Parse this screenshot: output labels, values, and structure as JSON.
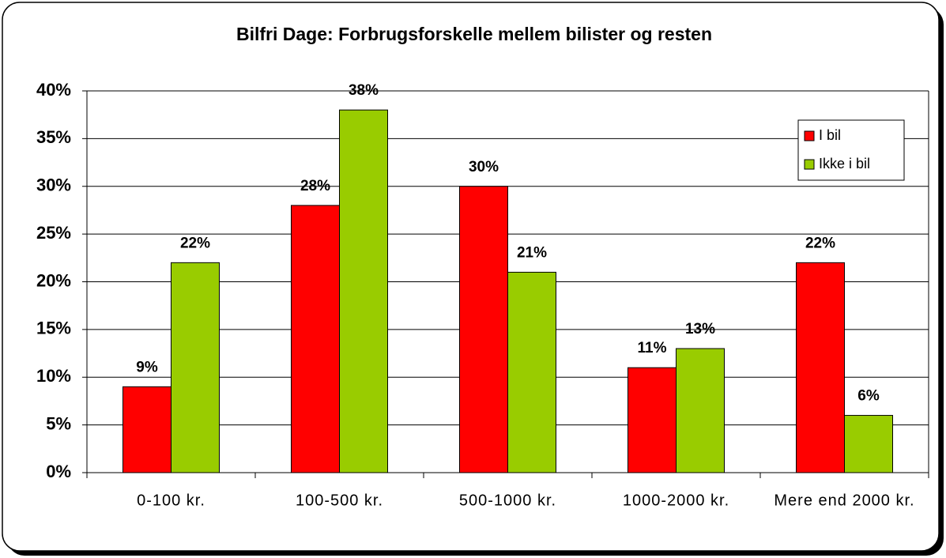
{
  "chart_data": {
    "type": "bar",
    "title": "Bilfri Dage: Forbrugsforskelle mellem bilister og resten",
    "categories": [
      "0-100 kr.",
      "100-500 kr.",
      "500-1000 kr.",
      "1000-2000 kr.",
      "Mere end 2000 kr."
    ],
    "series": [
      {
        "name": "I bil",
        "color": "#ff0000",
        "values": [
          9,
          28,
          30,
          11,
          22
        ],
        "value_labels": [
          "9%",
          "28%",
          "30%",
          "11%",
          "22%"
        ]
      },
      {
        "name": "Ikke i bil",
        "color": "#99cc00",
        "values": [
          22,
          38,
          21,
          13,
          6
        ],
        "value_labels": [
          "22%",
          "38%",
          "21%",
          "13%",
          "6%"
        ]
      }
    ],
    "ylim": [
      0,
      40
    ],
    "yticks": [
      {
        "value": 0,
        "label": "0%"
      },
      {
        "value": 5,
        "label": "5%"
      },
      {
        "value": 10,
        "label": "10%"
      },
      {
        "value": 15,
        "label": "15%"
      },
      {
        "value": 20,
        "label": "20%"
      },
      {
        "value": 25,
        "label": "25%"
      },
      {
        "value": 30,
        "label": "30%"
      },
      {
        "value": 35,
        "label": "35%"
      },
      {
        "value": 40,
        "label": "40%"
      }
    ],
    "grid": true,
    "legend": "upper right"
  }
}
